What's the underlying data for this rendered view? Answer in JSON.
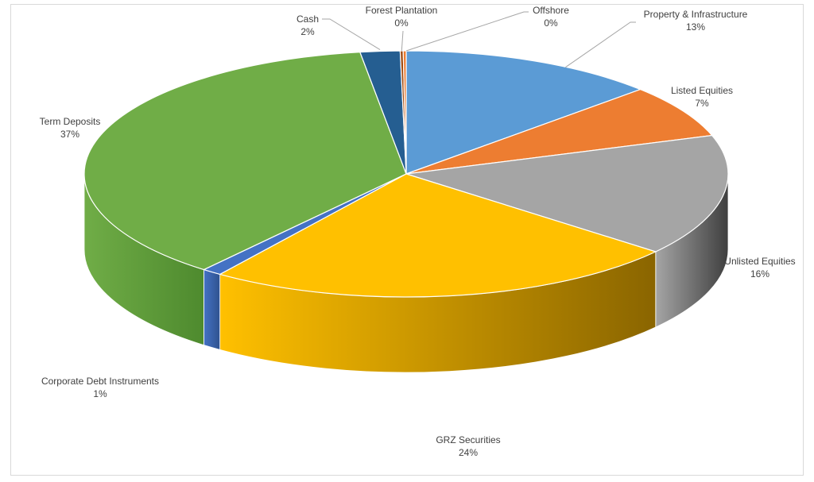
{
  "chart_data": {
    "type": "pie",
    "style": "3d-pie",
    "title": "",
    "legend": "none",
    "slices": [
      {
        "label": "Property & Infrastructure",
        "value": 13,
        "pct_label": "13%",
        "color": "#5b9bd5",
        "side_color": "#41719c"
      },
      {
        "label": "Listed Equities",
        "value": 7,
        "pct_label": "7%",
        "color": "#ed7d31",
        "side_color": "#b05a20"
      },
      {
        "label": "Unlisted Equities",
        "value": 16,
        "pct_label": "16%",
        "color": "#a5a5a5",
        "side_color": "#3f3f3f"
      },
      {
        "label": "GRZ Securities",
        "value": 24,
        "pct_label": "24%",
        "color": "#ffc000",
        "side_color": "#8a6500"
      },
      {
        "label": "Corporate Debt Instruments",
        "value": 1,
        "pct_label": "1%",
        "color": "#4472c4",
        "side_color": "#2f528f"
      },
      {
        "label": "Term Deposits",
        "value": 37,
        "pct_label": "37%",
        "color": "#70ad47",
        "side_color": "#4e8a2e"
      },
      {
        "label": "Cash",
        "value": 2,
        "pct_label": "2%",
        "color": "#255e91",
        "side_color": "#1a4468"
      },
      {
        "label": "Forest Plantation",
        "value": 0.15,
        "pct_label": "0%",
        "color": "#9e480e",
        "side_color": "#6e3209"
      },
      {
        "label": "Offshore",
        "value": 0.15,
        "pct_label": "0%",
        "color": "#ed7d31",
        "side_color": "#b05a20"
      }
    ]
  }
}
